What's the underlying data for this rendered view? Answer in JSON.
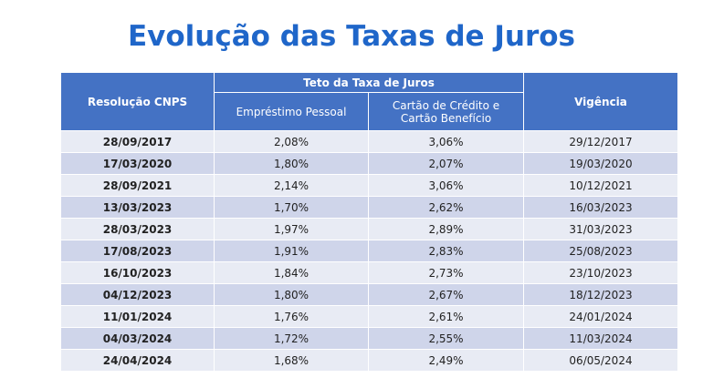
{
  "title": "Evolução das Taxas de Juros",
  "table": {
    "header": {
      "resolution": "Resolução CNPS",
      "group": "Teto da Taxa de Juros",
      "loan": "Empréstimo Pessoal",
      "card": "Cartão de Crédito e Cartão Benefício",
      "validity": "Vigência"
    },
    "rows": [
      [
        "28/09/2017",
        "2,08%",
        "3,06%",
        "29/12/2017"
      ],
      [
        "17/03/2020",
        "1,80%",
        "2,07%",
        "19/03/2020"
      ],
      [
        "28/09/2021",
        "2,14%",
        "3,06%",
        "10/12/2021"
      ],
      [
        "13/03/2023",
        "1,70%",
        "2,62%",
        "16/03/2023"
      ],
      [
        "28/03/2023",
        "1,97%",
        "2,89%",
        "31/03/2023"
      ],
      [
        "17/08/2023",
        "1,91%",
        "2,83%",
        "25/08/2023"
      ],
      [
        "16/10/2023",
        "1,84%",
        "2,73%",
        "23/10/2023"
      ],
      [
        "04/12/2023",
        "1,80%",
        "2,67%",
        "18/12/2023"
      ],
      [
        "11/01/2024",
        "1,76%",
        "2,61%",
        "24/01/2024"
      ],
      [
        "04/03/2024",
        "1,72%",
        "2,55%",
        "11/03/2024"
      ],
      [
        "24/04/2024",
        "1,68%",
        "2,49%",
        "06/05/2024"
      ]
    ]
  }
}
